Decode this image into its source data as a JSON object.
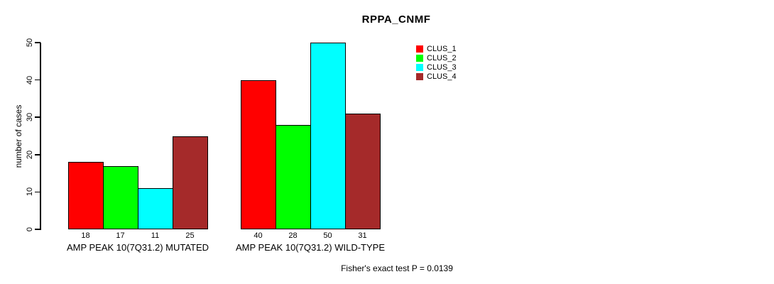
{
  "chart_data": {
    "type": "bar",
    "title": "RPPA_CNMF",
    "xlabel": "",
    "ylabel": "number of cases",
    "ylim": [
      0,
      50
    ],
    "yticks": [
      0,
      10,
      20,
      30,
      40,
      50
    ],
    "grid": false,
    "legend_position": "top-right",
    "categories": [
      "AMP PEAK 10(7Q31.2) MUTATED",
      "AMP PEAK 10(7Q31.2) WILD-TYPE"
    ],
    "series": [
      {
        "name": "CLUS_1",
        "color": "#ff0000",
        "values": [
          18,
          40
        ]
      },
      {
        "name": "CLUS_2",
        "color": "#00ff00",
        "values": [
          17,
          28
        ]
      },
      {
        "name": "CLUS_3",
        "color": "#00ffff",
        "values": [
          11,
          50
        ]
      },
      {
        "name": "CLUS_4",
        "color": "#a52a2a",
        "values": [
          25,
          31
        ]
      }
    ],
    "show_bar_value_labels": true,
    "annotation": "Fisher's exact test P = 0.0139"
  },
  "colors": {
    "background": "#ffffff",
    "axis": "#000000",
    "text": "#000000",
    "bar_border": "#000000"
  }
}
